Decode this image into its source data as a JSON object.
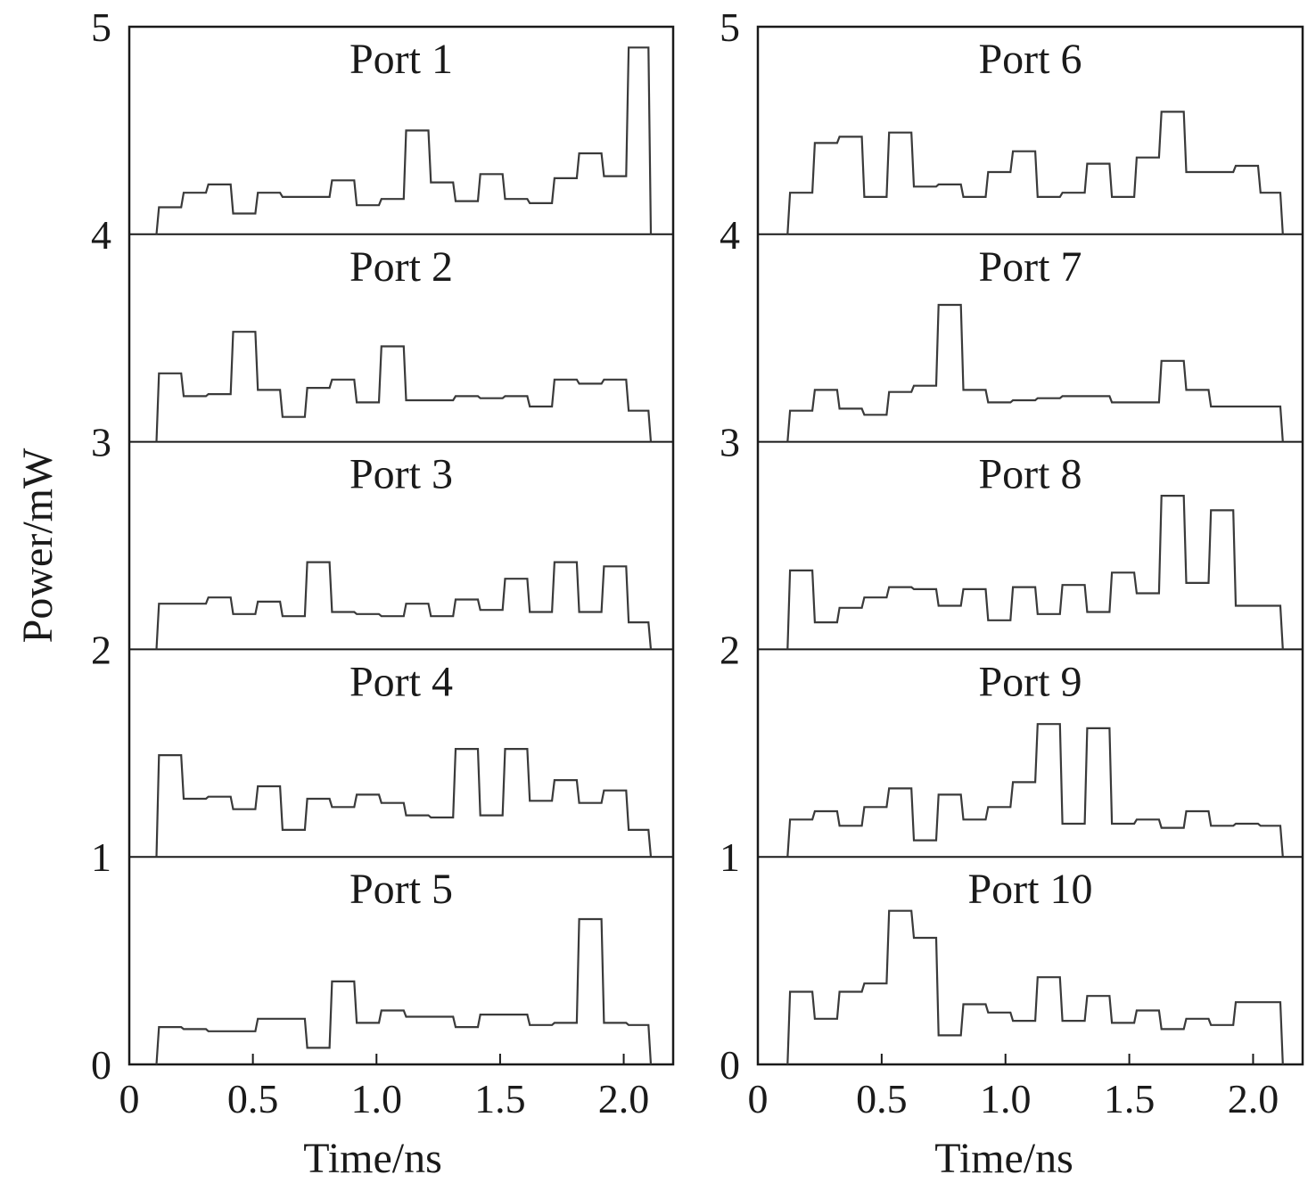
{
  "ylabel": "Power/mW",
  "xlabel_left": "Time/ns",
  "xlabel_right": "Time/ns",
  "chart_data": [
    {
      "type": "line",
      "xlabel": "Time/ns",
      "ylabel": "Power/mW",
      "xlim": [
        0,
        2.2
      ],
      "ylim": [
        0,
        5
      ],
      "x_ticks": [
        "0",
        "0.5",
        "1.0",
        "1.5",
        "2.0"
      ],
      "x_tick_values": [
        0,
        0.5,
        1.0,
        1.5,
        2.0
      ],
      "y_ticks": [
        "0",
        "1",
        "2",
        "3",
        "4",
        "5"
      ],
      "y_tick_values": [
        0,
        1,
        2,
        3,
        4,
        5
      ],
      "colors": {
        "trace": "#3a3a3a",
        "accent": "#2a2aa0"
      },
      "series": [
        {
          "name": "Port 1",
          "baseline": 4,
          "x": [
            0.11,
            0.12,
            0.21,
            0.22,
            0.31,
            0.32,
            0.41,
            0.42,
            0.51,
            0.52,
            0.61,
            0.62,
            0.71,
            0.72,
            0.81,
            0.82,
            0.91,
            0.92,
            1.01,
            1.02,
            1.11,
            1.12,
            1.21,
            1.22,
            1.31,
            1.32,
            1.41,
            1.42,
            1.51,
            1.52,
            1.61,
            1.62,
            1.71,
            1.72,
            1.81,
            1.82,
            1.91,
            1.92,
            2.01,
            2.02,
            2.1,
            2.11
          ],
          "y": [
            4.0,
            4.13,
            4.13,
            4.2,
            4.2,
            4.24,
            4.24,
            4.1,
            4.1,
            4.2,
            4.2,
            4.18,
            4.18,
            4.18,
            4.18,
            4.26,
            4.26,
            4.14,
            4.14,
            4.17,
            4.17,
            4.5,
            4.5,
            4.25,
            4.25,
            4.16,
            4.16,
            4.29,
            4.29,
            4.17,
            4.17,
            4.15,
            4.15,
            4.27,
            4.27,
            4.39,
            4.39,
            4.28,
            4.28,
            4.9,
            4.9,
            4.0
          ]
        },
        {
          "name": "Port 2",
          "baseline": 3,
          "x": [
            0.11,
            0.12,
            0.21,
            0.22,
            0.31,
            0.32,
            0.41,
            0.42,
            0.51,
            0.52,
            0.61,
            0.62,
            0.71,
            0.72,
            0.81,
            0.82,
            0.91,
            0.92,
            1.01,
            1.02,
            1.11,
            1.12,
            1.21,
            1.22,
            1.31,
            1.32,
            1.41,
            1.42,
            1.51,
            1.52,
            1.61,
            1.62,
            1.71,
            1.72,
            1.81,
            1.82,
            1.91,
            1.92,
            2.01,
            2.02,
            2.1,
            2.11
          ],
          "y": [
            3.0,
            3.33,
            3.33,
            3.22,
            3.22,
            3.23,
            3.23,
            3.53,
            3.53,
            3.25,
            3.25,
            3.12,
            3.12,
            3.26,
            3.26,
            3.3,
            3.3,
            3.19,
            3.19,
            3.46,
            3.46,
            3.2,
            3.2,
            3.2,
            3.2,
            3.22,
            3.22,
            3.21,
            3.21,
            3.22,
            3.22,
            3.17,
            3.17,
            3.3,
            3.3,
            3.28,
            3.28,
            3.3,
            3.3,
            3.15,
            3.15,
            3.0
          ]
        },
        {
          "name": "Port 3",
          "baseline": 2,
          "x": [
            0.11,
            0.12,
            0.21,
            0.22,
            0.31,
            0.32,
            0.41,
            0.42,
            0.51,
            0.52,
            0.61,
            0.62,
            0.71,
            0.72,
            0.81,
            0.82,
            0.91,
            0.92,
            1.01,
            1.02,
            1.11,
            1.12,
            1.21,
            1.22,
            1.31,
            1.32,
            1.41,
            1.42,
            1.51,
            1.52,
            1.61,
            1.62,
            1.71,
            1.72,
            1.81,
            1.82,
            1.91,
            1.92,
            2.01,
            2.02,
            2.1,
            2.11
          ],
          "y": [
            2.0,
            2.22,
            2.22,
            2.22,
            2.22,
            2.25,
            2.25,
            2.17,
            2.17,
            2.23,
            2.23,
            2.16,
            2.16,
            2.42,
            2.42,
            2.18,
            2.18,
            2.17,
            2.17,
            2.16,
            2.16,
            2.22,
            2.22,
            2.16,
            2.16,
            2.24,
            2.24,
            2.19,
            2.19,
            2.34,
            2.34,
            2.18,
            2.18,
            2.42,
            2.42,
            2.18,
            2.18,
            2.4,
            2.4,
            2.13,
            2.13,
            2.0
          ]
        },
        {
          "name": "Port 4",
          "baseline": 1,
          "x": [
            0.11,
            0.12,
            0.21,
            0.22,
            0.31,
            0.32,
            0.41,
            0.42,
            0.51,
            0.52,
            0.61,
            0.62,
            0.71,
            0.72,
            0.81,
            0.82,
            0.91,
            0.92,
            1.01,
            1.02,
            1.11,
            1.12,
            1.21,
            1.22,
            1.31,
            1.32,
            1.41,
            1.42,
            1.51,
            1.52,
            1.61,
            1.62,
            1.71,
            1.72,
            1.81,
            1.82,
            1.91,
            1.92,
            2.01,
            2.02,
            2.1,
            2.11
          ],
          "y": [
            1.0,
            1.49,
            1.49,
            1.28,
            1.28,
            1.29,
            1.29,
            1.23,
            1.23,
            1.34,
            1.34,
            1.13,
            1.13,
            1.28,
            1.28,
            1.24,
            1.24,
            1.3,
            1.3,
            1.26,
            1.26,
            1.2,
            1.2,
            1.19,
            1.19,
            1.52,
            1.52,
            1.2,
            1.2,
            1.52,
            1.52,
            1.27,
            1.27,
            1.37,
            1.37,
            1.26,
            1.26,
            1.32,
            1.32,
            1.13,
            1.13,
            1.0
          ]
        },
        {
          "name": "Port 5",
          "baseline": 0,
          "x": [
            0.11,
            0.12,
            0.21,
            0.22,
            0.31,
            0.32,
            0.41,
            0.42,
            0.51,
            0.52,
            0.61,
            0.62,
            0.71,
            0.72,
            0.81,
            0.82,
            0.91,
            0.92,
            1.01,
            1.02,
            1.11,
            1.12,
            1.21,
            1.22,
            1.31,
            1.32,
            1.41,
            1.42,
            1.51,
            1.52,
            1.61,
            1.62,
            1.71,
            1.72,
            1.81,
            1.82,
            1.91,
            1.92,
            2.01,
            2.02,
            2.1,
            2.11
          ],
          "y": [
            0.0,
            0.18,
            0.18,
            0.17,
            0.17,
            0.16,
            0.16,
            0.16,
            0.16,
            0.22,
            0.22,
            0.22,
            0.22,
            0.08,
            0.08,
            0.4,
            0.4,
            0.2,
            0.2,
            0.26,
            0.26,
            0.23,
            0.23,
            0.23,
            0.23,
            0.18,
            0.18,
            0.24,
            0.24,
            0.24,
            0.24,
            0.19,
            0.19,
            0.2,
            0.2,
            0.7,
            0.7,
            0.2,
            0.2,
            0.19,
            0.19,
            0.0
          ]
        }
      ]
    },
    {
      "type": "line",
      "xlabel": "Time/ns",
      "ylabel": "",
      "xlim": [
        0,
        2.2
      ],
      "ylim": [
        0,
        5
      ],
      "x_ticks": [
        "0",
        "0.5",
        "1.0",
        "1.5",
        "2.0"
      ],
      "x_tick_values": [
        0,
        0.5,
        1.0,
        1.5,
        2.0
      ],
      "y_ticks": [
        "0",
        "1",
        "2",
        "3",
        "4",
        "5"
      ],
      "y_tick_values": [
        0,
        1,
        2,
        3,
        4,
        5
      ],
      "colors": {
        "trace": "#3a3a3a",
        "accent": "#2a2aa0"
      },
      "series": [
        {
          "name": "Port 6",
          "baseline": 4,
          "x": [
            0.12,
            0.13,
            0.22,
            0.23,
            0.32,
            0.33,
            0.42,
            0.43,
            0.52,
            0.53,
            0.62,
            0.63,
            0.72,
            0.73,
            0.82,
            0.83,
            0.92,
            0.93,
            1.02,
            1.03,
            1.12,
            1.13,
            1.22,
            1.23,
            1.32,
            1.33,
            1.42,
            1.43,
            1.52,
            1.53,
            1.62,
            1.63,
            1.72,
            1.73,
            1.82,
            1.83,
            1.92,
            1.93,
            2.02,
            2.03,
            2.11,
            2.12
          ],
          "y": [
            4.0,
            4.2,
            4.2,
            4.44,
            4.44,
            4.47,
            4.47,
            4.18,
            4.18,
            4.49,
            4.49,
            4.23,
            4.23,
            4.24,
            4.24,
            4.18,
            4.18,
            4.3,
            4.3,
            4.4,
            4.4,
            4.18,
            4.18,
            4.2,
            4.2,
            4.34,
            4.34,
            4.18,
            4.18,
            4.37,
            4.37,
            4.59,
            4.59,
            4.3,
            4.3,
            4.3,
            4.3,
            4.33,
            4.33,
            4.2,
            4.2,
            4.0
          ]
        },
        {
          "name": "Port 7",
          "baseline": 3,
          "x": [
            0.12,
            0.13,
            0.22,
            0.23,
            0.32,
            0.33,
            0.42,
            0.43,
            0.52,
            0.53,
            0.62,
            0.63,
            0.72,
            0.73,
            0.82,
            0.83,
            0.92,
            0.93,
            1.02,
            1.03,
            1.12,
            1.13,
            1.22,
            1.23,
            1.32,
            1.33,
            1.42,
            1.43,
            1.52,
            1.53,
            1.62,
            1.63,
            1.72,
            1.73,
            1.82,
            1.83,
            1.92,
            1.93,
            2.02,
            2.03,
            2.11,
            2.12
          ],
          "y": [
            3.0,
            3.15,
            3.15,
            3.25,
            3.25,
            3.16,
            3.16,
            3.13,
            3.13,
            3.24,
            3.24,
            3.27,
            3.27,
            3.66,
            3.66,
            3.25,
            3.25,
            3.19,
            3.19,
            3.2,
            3.2,
            3.21,
            3.21,
            3.22,
            3.22,
            3.22,
            3.22,
            3.19,
            3.19,
            3.19,
            3.19,
            3.39,
            3.39,
            3.25,
            3.25,
            3.17,
            3.17,
            3.17,
            3.17,
            3.17,
            3.17,
            3.0
          ]
        },
        {
          "name": "Port 8",
          "baseline": 2,
          "x": [
            0.12,
            0.13,
            0.22,
            0.23,
            0.32,
            0.33,
            0.42,
            0.43,
            0.52,
            0.53,
            0.62,
            0.63,
            0.72,
            0.73,
            0.82,
            0.83,
            0.92,
            0.93,
            1.02,
            1.03,
            1.12,
            1.13,
            1.22,
            1.23,
            1.32,
            1.33,
            1.42,
            1.43,
            1.52,
            1.53,
            1.62,
            1.63,
            1.72,
            1.73,
            1.82,
            1.83,
            1.92,
            1.93,
            2.02,
            2.03,
            2.11,
            2.12
          ],
          "y": [
            2.0,
            2.38,
            2.38,
            2.13,
            2.13,
            2.2,
            2.2,
            2.25,
            2.25,
            2.3,
            2.3,
            2.29,
            2.29,
            2.21,
            2.21,
            2.29,
            2.29,
            2.14,
            2.14,
            2.3,
            2.3,
            2.17,
            2.17,
            2.31,
            2.31,
            2.18,
            2.18,
            2.37,
            2.37,
            2.27,
            2.27,
            2.74,
            2.74,
            2.32,
            2.32,
            2.67,
            2.67,
            2.21,
            2.21,
            2.21,
            2.21,
            2.0
          ]
        },
        {
          "name": "Port 9",
          "baseline": 1,
          "x": [
            0.12,
            0.13,
            0.22,
            0.23,
            0.32,
            0.33,
            0.42,
            0.43,
            0.52,
            0.53,
            0.62,
            0.63,
            0.72,
            0.73,
            0.82,
            0.83,
            0.92,
            0.93,
            1.02,
            1.03,
            1.12,
            1.13,
            1.22,
            1.23,
            1.32,
            1.33,
            1.42,
            1.43,
            1.52,
            1.53,
            1.62,
            1.63,
            1.72,
            1.73,
            1.82,
            1.83,
            1.92,
            1.93,
            2.02,
            2.03,
            2.11,
            2.12
          ],
          "y": [
            1.0,
            1.18,
            1.18,
            1.22,
            1.22,
            1.15,
            1.15,
            1.24,
            1.24,
            1.33,
            1.33,
            1.08,
            1.08,
            1.3,
            1.3,
            1.18,
            1.18,
            1.24,
            1.24,
            1.36,
            1.36,
            1.64,
            1.64,
            1.16,
            1.16,
            1.62,
            1.62,
            1.16,
            1.16,
            1.18,
            1.18,
            1.14,
            1.14,
            1.22,
            1.22,
            1.15,
            1.15,
            1.16,
            1.16,
            1.15,
            1.15,
            1.0
          ]
        },
        {
          "name": "Port 10",
          "baseline": 0,
          "x": [
            0.12,
            0.13,
            0.22,
            0.23,
            0.32,
            0.33,
            0.42,
            0.43,
            0.52,
            0.53,
            0.62,
            0.63,
            0.72,
            0.73,
            0.82,
            0.83,
            0.92,
            0.93,
            1.02,
            1.03,
            1.12,
            1.13,
            1.22,
            1.23,
            1.32,
            1.33,
            1.42,
            1.43,
            1.52,
            1.53,
            1.62,
            1.63,
            1.72,
            1.73,
            1.82,
            1.83,
            1.92,
            1.93,
            2.02,
            2.03,
            2.11,
            2.12
          ],
          "y": [
            0.0,
            0.35,
            0.35,
            0.22,
            0.22,
            0.35,
            0.35,
            0.39,
            0.39,
            0.74,
            0.74,
            0.61,
            0.61,
            0.14,
            0.14,
            0.29,
            0.29,
            0.25,
            0.25,
            0.21,
            0.21,
            0.42,
            0.42,
            0.21,
            0.21,
            0.33,
            0.33,
            0.2,
            0.2,
            0.26,
            0.26,
            0.17,
            0.17,
            0.22,
            0.22,
            0.19,
            0.19,
            0.3,
            0.3,
            0.3,
            0.3,
            0.0
          ]
        }
      ]
    }
  ]
}
